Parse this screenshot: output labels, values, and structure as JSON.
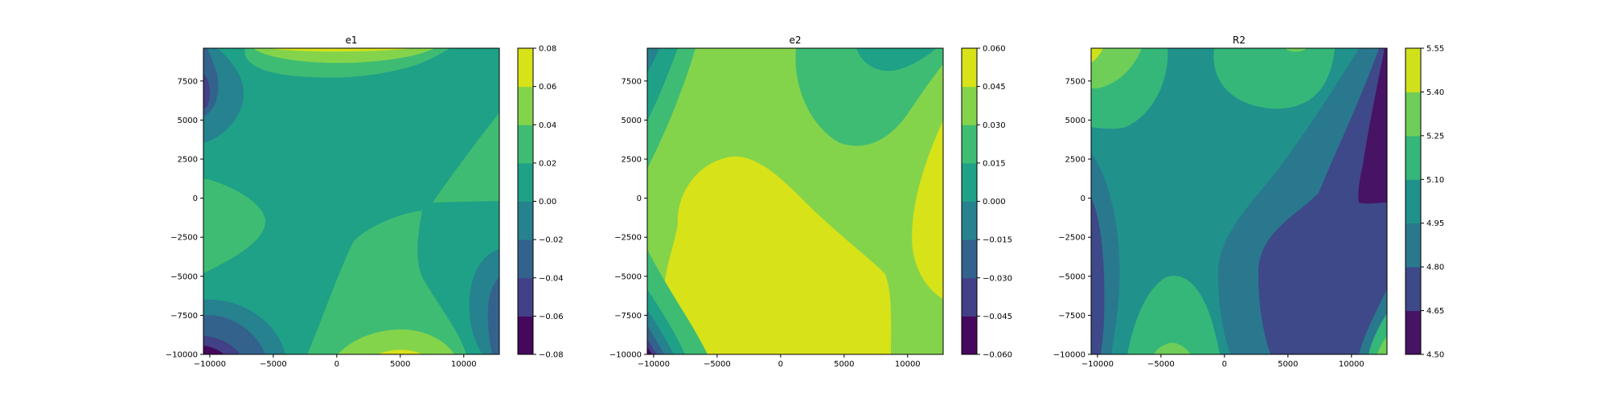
{
  "chart_data": [
    {
      "type": "contourf",
      "title": "e1",
      "xlim": [
        -10500,
        12800
      ],
      "ylim": [
        -10000,
        9600
      ],
      "x_ticks": [
        -10000,
        -5000,
        0,
        5000,
        10000
      ],
      "x_tick_labels": [
        "−10000",
        "−5000",
        "0",
        "5000",
        "10000"
      ],
      "y_ticks": [
        -10000,
        -7500,
        -5000,
        -2500,
        0,
        2500,
        5000,
        7500
      ],
      "y_tick_labels": [
        "−10000",
        "−7500",
        "−5000",
        "−2500",
        "0",
        "2500",
        "5000",
        "7500"
      ],
      "levels": [
        -0.08,
        -0.06,
        -0.04,
        -0.02,
        0.0,
        0.02,
        0.04,
        0.06,
        0.08
      ],
      "level_labels": [
        "−0.08",
        "−0.06",
        "−0.04",
        "−0.02",
        "0.00",
        "0.02",
        "0.04",
        "0.06",
        "0.08"
      ]
    },
    {
      "type": "contourf",
      "title": "e2",
      "xlim": [
        -10500,
        12800
      ],
      "ylim": [
        -10000,
        9600
      ],
      "x_ticks": [
        -10000,
        -5000,
        0,
        5000,
        10000
      ],
      "x_tick_labels": [
        "−10000",
        "−5000",
        "0",
        "5000",
        "10000"
      ],
      "y_ticks": [
        -10000,
        -7500,
        -5000,
        -2500,
        0,
        2500,
        5000,
        7500
      ],
      "y_tick_labels": [
        "−10000",
        "−7500",
        "−5000",
        "−2500",
        "0",
        "2500",
        "5000",
        "7500"
      ],
      "levels": [
        -0.06,
        -0.045,
        -0.03,
        -0.015,
        0.0,
        0.015,
        0.03,
        0.045,
        0.06
      ],
      "level_labels": [
        "−0.060",
        "−0.045",
        "−0.030",
        "−0.015",
        "0.000",
        "0.015",
        "0.030",
        "0.045",
        "0.060"
      ]
    },
    {
      "type": "contourf",
      "title": "R2",
      "xlim": [
        -10500,
        12800
      ],
      "ylim": [
        -10000,
        9600
      ],
      "x_ticks": [
        -10000,
        -5000,
        0,
        5000,
        10000
      ],
      "x_tick_labels": [
        "−10000",
        "−5000",
        "0",
        "5000",
        "10000"
      ],
      "y_ticks": [
        -10000,
        -7500,
        -5000,
        -2500,
        0,
        2500,
        5000,
        7500
      ],
      "y_tick_labels": [
        "−10000",
        "−7500",
        "−5000",
        "−2500",
        "0",
        "2500",
        "5000",
        "7500"
      ],
      "levels": [
        4.5,
        4.65,
        4.8,
        4.95,
        5.1,
        5.25,
        5.4,
        5.55
      ],
      "level_labels": [
        "4.50",
        "4.65",
        "4.80",
        "4.95",
        "5.10",
        "5.25",
        "5.40",
        "5.55"
      ]
    }
  ],
  "colormap": "viridis",
  "band_colors_8": [
    "#46085c",
    "#424086",
    "#33638d",
    "#26828e",
    "#1fa187",
    "#3fbc73",
    "#84d44b",
    "#d8e219"
  ],
  "band_colors_7": [
    "#471365",
    "#3e4989",
    "#2a788e",
    "#21918c",
    "#35b779",
    "#6ece58",
    "#d0e11c"
  ]
}
